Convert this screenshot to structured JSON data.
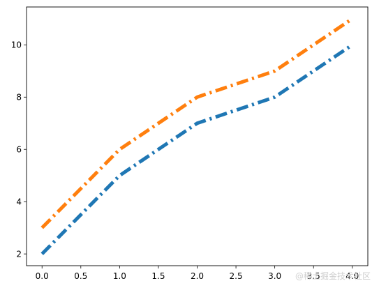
{
  "chart_data": {
    "type": "line",
    "title": "",
    "xlabel": "",
    "ylabel": "",
    "x": [
      0,
      1,
      2,
      3,
      4
    ],
    "xlim": [
      -0.2,
      4.2
    ],
    "ylim": [
      1.55,
      11.45
    ],
    "x_ticks": [
      0.0,
      0.5,
      1.0,
      1.5,
      2.0,
      2.5,
      3.0,
      3.5,
      4.0
    ],
    "x_tick_labels": [
      "0.0",
      "0.5",
      "1.0",
      "1.5",
      "2.0",
      "2.5",
      "3.0",
      "3.5",
      "4.0"
    ],
    "y_ticks": [
      2,
      4,
      6,
      8,
      10
    ],
    "y_tick_labels": [
      "2",
      "4",
      "6",
      "8",
      "10"
    ],
    "grid": false,
    "legend": false,
    "line_style": "dash-dot",
    "series": [
      {
        "values": [
          2,
          5,
          7,
          8,
          10
        ],
        "color": "#1f77b4"
      },
      {
        "values": [
          3,
          6,
          8,
          9,
          11
        ],
        "color": "#ff7f0e"
      }
    ]
  },
  "watermark": "@稀土掘金技术社区"
}
